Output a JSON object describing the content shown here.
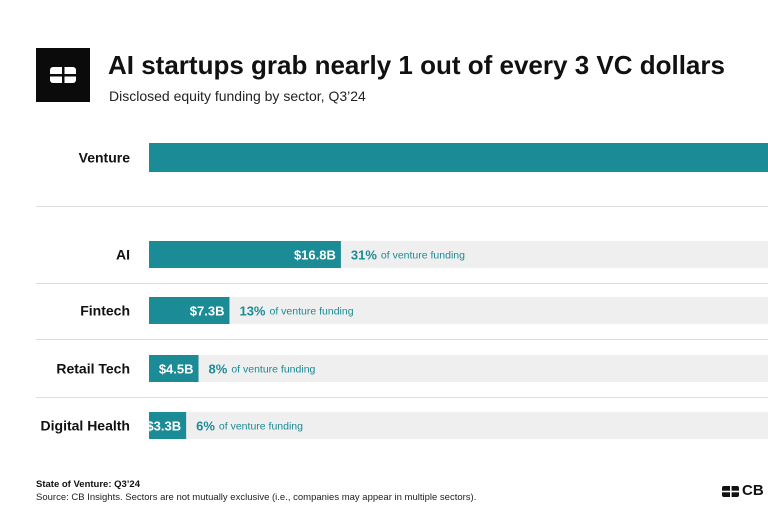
{
  "header": {
    "title": "AI startups grab nearly 1 out of every 3 VC dollars",
    "subtitle": "Disclosed equity funding by sector, Q3’24"
  },
  "colors": {
    "bar": "#1b8b96",
    "track": "#efefef",
    "accent_text": "#1b8b96",
    "divider": "#dddddd"
  },
  "icons": {
    "logo": "cb-insights-logo-icon"
  },
  "chart_data": {
    "type": "bar",
    "orientation": "horizontal",
    "title": "AI startups grab nearly 1 out of every 3 VC dollars",
    "subtitle": "Disclosed equity funding by sector, Q3’24",
    "total": {
      "category": "Venture",
      "share": 100
    },
    "categories": [
      "AI",
      "Fintech",
      "Retail Tech",
      "Digital Health"
    ],
    "values": [
      16.8,
      7.3,
      4.5,
      3.3
    ],
    "value_labels": [
      "$16.8B",
      "$7.3B",
      "$4.5B",
      "$3.3B"
    ],
    "share_labels": [
      "31%",
      "13%",
      "8%",
      "6%"
    ],
    "share_suffix": "of venture funding",
    "unit": "$B"
  },
  "footer": {
    "report": "State of Venture: Q3’24",
    "source": "Source: CB Insights. Sectors are not mutually exclusive (i.e., companies may appear in multiple sectors).",
    "brand": "CB Insights"
  }
}
